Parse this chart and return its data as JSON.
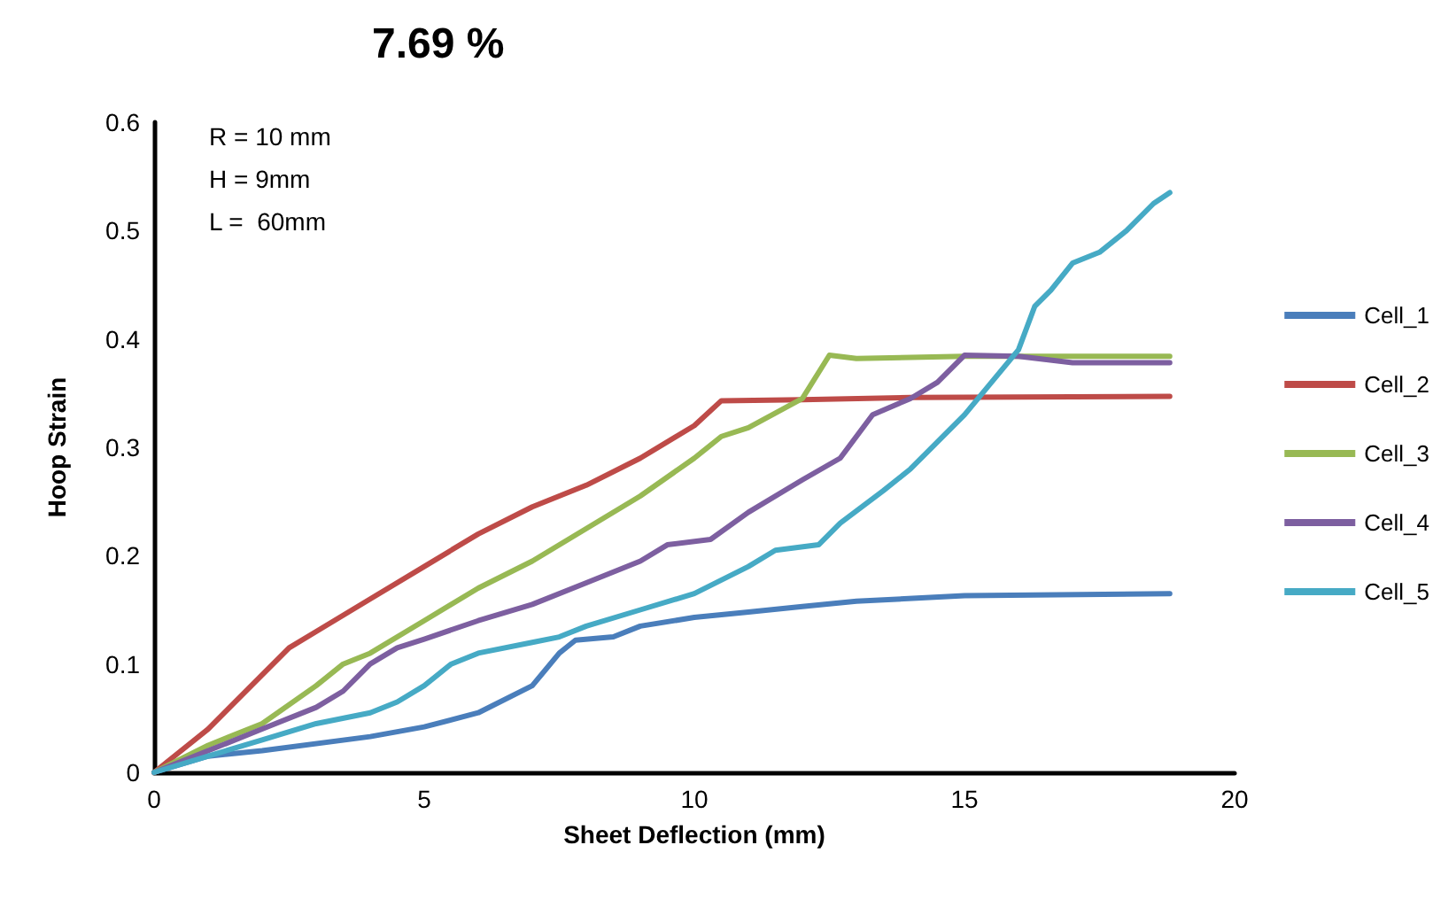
{
  "chart_data": {
    "type": "line",
    "title": "7.69 %",
    "xlabel": "Sheet Deflection (mm)",
    "ylabel": "Hoop Strain",
    "annotations": [
      "R = 10 mm",
      "H = 9mm",
      "L =  60mm"
    ],
    "xlim": [
      0,
      20
    ],
    "xticks": [
      0,
      5,
      10,
      15,
      20
    ],
    "ylim": [
      0,
      0.6
    ],
    "yticks": [
      0,
      0.1,
      0.2,
      0.3,
      0.4,
      0.5,
      0.6
    ],
    "grid": false,
    "legend": "right",
    "marker": "none",
    "line_style": "solid",
    "series": [
      {
        "name": "Cell_1",
        "color": "#4a7ebb",
        "x": [
          0,
          1,
          2,
          4,
          5,
          6,
          7,
          7.5,
          7.8,
          8.5,
          9,
          10,
          11,
          12,
          13,
          15,
          18.8
        ],
        "values": [
          0,
          0.015,
          0.02,
          0.033,
          0.042,
          0.055,
          0.08,
          0.11,
          0.122,
          0.125,
          0.135,
          0.143,
          0.148,
          0.153,
          0.158,
          0.163,
          0.165
        ]
      },
      {
        "name": "Cell_2",
        "color": "#be4b48",
        "x": [
          0,
          1,
          2,
          2.5,
          3,
          4,
          5,
          6,
          7,
          8,
          9,
          10,
          10.5,
          12,
          14,
          18.8
        ],
        "values": [
          0,
          0.04,
          0.09,
          0.115,
          0.13,
          0.16,
          0.19,
          0.22,
          0.245,
          0.265,
          0.29,
          0.32,
          0.343,
          0.344,
          0.346,
          0.347
        ]
      },
      {
        "name": "Cell_3",
        "color": "#98b954",
        "x": [
          0,
          1,
          2,
          3,
          3.5,
          4,
          5,
          6,
          7,
          8,
          9,
          10,
          10.5,
          11,
          12,
          12.5,
          13,
          15,
          18.8
        ],
        "values": [
          0,
          0.025,
          0.045,
          0.08,
          0.1,
          0.11,
          0.14,
          0.17,
          0.195,
          0.225,
          0.255,
          0.29,
          0.31,
          0.318,
          0.345,
          0.385,
          0.382,
          0.384,
          0.384
        ]
      },
      {
        "name": "Cell_4",
        "color": "#7d5fa0",
        "x": [
          0,
          1,
          2,
          3,
          3.5,
          4,
          4.5,
          5,
          6,
          7,
          8,
          9,
          9.5,
          10.3,
          11,
          12,
          12.7,
          13.3,
          14,
          14.5,
          15,
          16,
          17,
          18.8
        ],
        "values": [
          0,
          0.02,
          0.04,
          0.06,
          0.075,
          0.1,
          0.115,
          0.123,
          0.14,
          0.155,
          0.175,
          0.195,
          0.21,
          0.215,
          0.24,
          0.27,
          0.29,
          0.33,
          0.345,
          0.36,
          0.385,
          0.384,
          0.378,
          0.378
        ]
      },
      {
        "name": "Cell_5",
        "color": "#46aac5",
        "x": [
          0,
          1,
          2,
          3,
          4,
          4.5,
          5,
          5.5,
          6,
          7,
          7.5,
          8,
          9,
          10,
          11,
          11.5,
          12.3,
          12.7,
          13.5,
          14,
          14.5,
          15,
          15.5,
          16,
          16.3,
          16.6,
          17,
          17.5,
          18,
          18.5,
          18.8
        ],
        "values": [
          0,
          0.015,
          0.03,
          0.045,
          0.055,
          0.065,
          0.08,
          0.1,
          0.11,
          0.12,
          0.125,
          0.135,
          0.15,
          0.165,
          0.19,
          0.205,
          0.21,
          0.23,
          0.26,
          0.28,
          0.305,
          0.33,
          0.36,
          0.39,
          0.43,
          0.445,
          0.47,
          0.48,
          0.5,
          0.525,
          0.535
        ]
      }
    ]
  }
}
